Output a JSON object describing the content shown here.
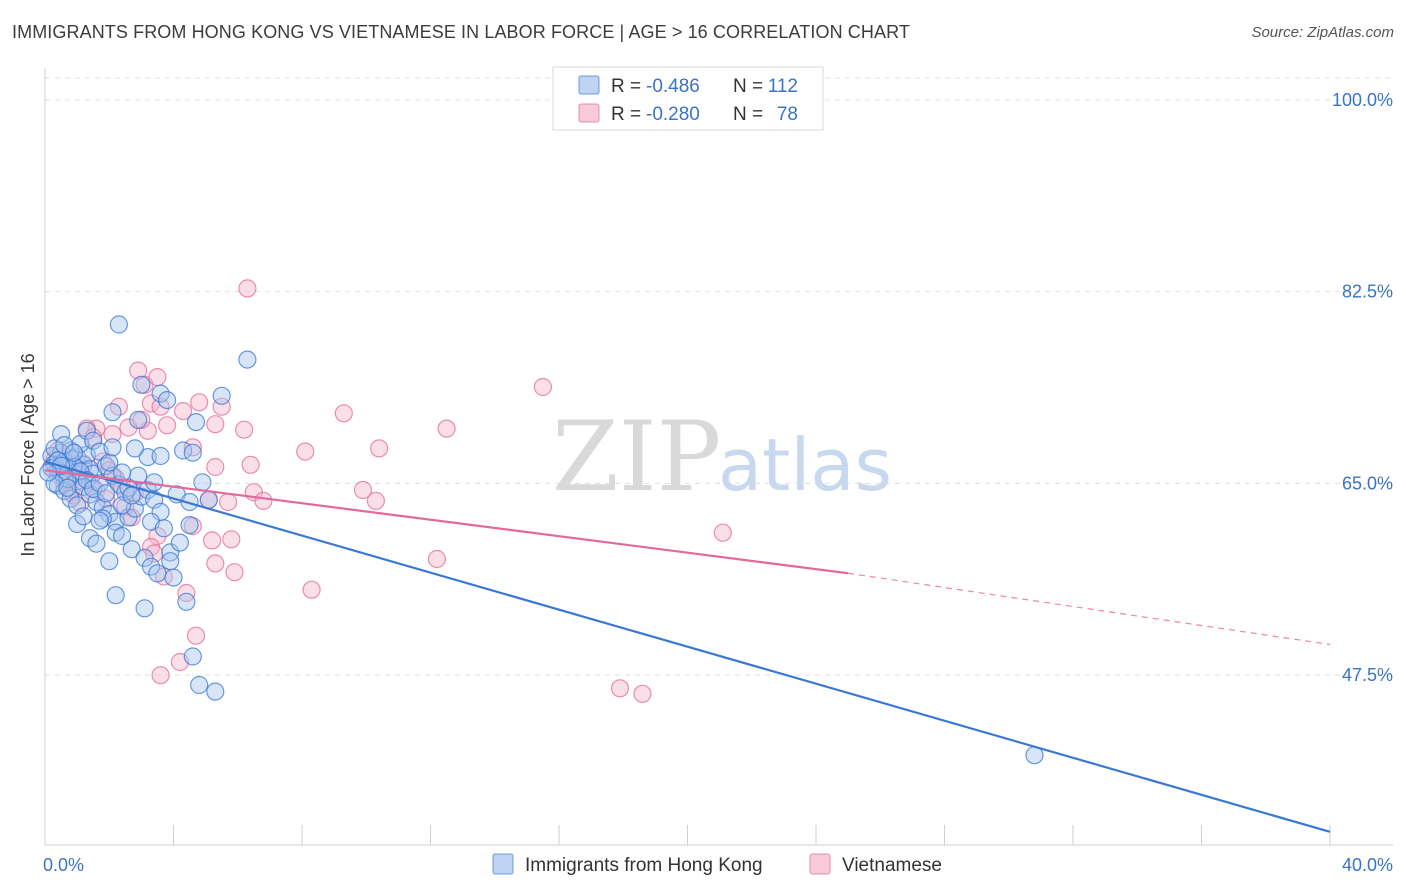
{
  "title": "IMMIGRANTS FROM HONG KONG VS VIETNAMESE IN LABOR FORCE | AGE > 16 CORRELATION CHART",
  "source": "Source: ZipAtlas.com",
  "watermark": {
    "zip": "ZIP",
    "atlas": "atlas"
  },
  "colors": {
    "blue": "#3a78d4",
    "blue_fill": "#a9c6ee",
    "pink": "#e3699a",
    "pink_fill": "#f4b9cd",
    "tick": "#3b73c8"
  },
  "legend": {
    "r_label": "R =",
    "n_label": "N =",
    "rows": [
      {
        "r": "-0.486",
        "n": "112"
      },
      {
        "r": "-0.280",
        "n": "78"
      }
    ]
  },
  "chart_data": {
    "type": "scatter",
    "xlabel": "",
    "ylabel": "In Labor Force | Age > 16",
    "xlim": [
      0,
      40
    ],
    "ylim": [
      32,
      102
    ],
    "x_tick_labels": [
      "0.0%",
      "40.0%"
    ],
    "y_ticks": [
      47.5,
      65.0,
      82.5,
      100.0
    ],
    "y_tick_labels": [
      "47.5%",
      "65.0%",
      "82.5%",
      "100.0%"
    ],
    "grid": true,
    "legend_position": "top-center",
    "series": [
      {
        "name": "Immigrants from Hong Kong",
        "color": "blue",
        "trend": {
          "x": [
            0,
            40
          ],
          "y": [
            67.0,
            33.2
          ],
          "dashed_from": null
        },
        "points": [
          [
            0.2,
            67.5
          ],
          [
            0.3,
            66.8
          ],
          [
            0.4,
            66.2
          ],
          [
            0.5,
            67.8
          ],
          [
            0.6,
            65.5
          ],
          [
            0.7,
            66.9
          ],
          [
            0.8,
            67.2
          ],
          [
            0.9,
            66.0
          ],
          [
            1.0,
            67.4
          ],
          [
            1.1,
            65.8
          ],
          [
            0.3,
            68.2
          ],
          [
            0.5,
            69.5
          ],
          [
            0.6,
            67.0
          ],
          [
            0.8,
            68.0
          ],
          [
            0.9,
            66.5
          ],
          [
            1.0,
            65.2
          ],
          [
            1.2,
            66.7
          ],
          [
            1.3,
            67.6
          ],
          [
            1.4,
            66.3
          ],
          [
            1.5,
            65.9
          ],
          [
            0.4,
            64.8
          ],
          [
            0.6,
            64.3
          ],
          [
            0.8,
            63.6
          ],
          [
            1.0,
            63.0
          ],
          [
            1.2,
            64.7
          ],
          [
            1.4,
            64.0
          ],
          [
            1.6,
            63.3
          ],
          [
            1.8,
            62.8
          ],
          [
            2.0,
            62.2
          ],
          [
            2.2,
            61.5
          ],
          [
            0.5,
            66.0
          ],
          [
            0.7,
            65.4
          ],
          [
            1.1,
            68.6
          ],
          [
            1.3,
            69.8
          ],
          [
            1.5,
            68.9
          ],
          [
            1.7,
            67.9
          ],
          [
            1.9,
            66.6
          ],
          [
            2.1,
            65.7
          ],
          [
            2.3,
            64.9
          ],
          [
            2.5,
            64.2
          ],
          [
            1.0,
            61.3
          ],
          [
            1.4,
            60.0
          ],
          [
            1.8,
            61.8
          ],
          [
            2.2,
            60.5
          ],
          [
            2.6,
            61.9
          ],
          [
            2.8,
            62.7
          ],
          [
            3.0,
            63.8
          ],
          [
            3.2,
            64.4
          ],
          [
            3.4,
            63.5
          ],
          [
            3.6,
            62.4
          ],
          [
            1.6,
            59.5
          ],
          [
            2.0,
            57.9
          ],
          [
            2.4,
            60.2
          ],
          [
            2.7,
            59.0
          ],
          [
            3.1,
            58.2
          ],
          [
            3.3,
            57.4
          ],
          [
            3.5,
            56.8
          ],
          [
            3.9,
            58.7
          ],
          [
            4.2,
            59.6
          ],
          [
            4.5,
            61.2
          ],
          [
            2.1,
            71.5
          ],
          [
            2.9,
            70.8
          ],
          [
            3.0,
            74.0
          ],
          [
            3.6,
            73.2
          ],
          [
            3.8,
            72.6
          ],
          [
            4.7,
            70.6
          ],
          [
            5.5,
            73.0
          ],
          [
            6.3,
            76.3
          ],
          [
            2.3,
            79.5
          ],
          [
            3.2,
            67.4
          ],
          [
            3.6,
            67.5
          ],
          [
            4.1,
            64.0
          ],
          [
            4.5,
            63.3
          ],
          [
            4.9,
            65.1
          ],
          [
            5.1,
            63.5
          ],
          [
            4.3,
            68.0
          ],
          [
            4.6,
            67.8
          ],
          [
            3.4,
            65.1
          ],
          [
            2.9,
            65.7
          ],
          [
            2.6,
            64.6
          ],
          [
            2.2,
            54.8
          ],
          [
            3.1,
            53.6
          ],
          [
            4.4,
            54.2
          ],
          [
            4.6,
            49.2
          ],
          [
            4.8,
            46.6
          ],
          [
            5.3,
            46.0
          ],
          [
            1.2,
            62.0
          ],
          [
            1.7,
            61.6
          ],
          [
            2.4,
            63.0
          ],
          [
            2.7,
            63.9
          ],
          [
            0.2,
            66.4
          ],
          [
            0.3,
            65.0
          ],
          [
            0.4,
            67.1
          ],
          [
            0.5,
            66.6
          ],
          [
            0.6,
            68.5
          ],
          [
            0.7,
            64.6
          ],
          [
            0.9,
            67.8
          ],
          [
            1.1,
            66.1
          ],
          [
            1.3,
            65.3
          ],
          [
            1.5,
            64.5
          ],
          [
            1.7,
            65.0
          ],
          [
            1.9,
            64.1
          ],
          [
            2.0,
            66.9
          ],
          [
            2.1,
            68.3
          ],
          [
            2.4,
            66.0
          ],
          [
            2.8,
            68.2
          ],
          [
            3.3,
            61.5
          ],
          [
            3.7,
            60.9
          ],
          [
            3.9,
            57.9
          ],
          [
            4.0,
            56.4
          ],
          [
            30.8,
            40.2
          ],
          [
            0.1,
            66.0
          ]
        ]
      },
      {
        "name": "Vietnamese",
        "color": "pink",
        "trend": {
          "x": [
            0,
            25,
            40
          ],
          "y": [
            66.2,
            56.8,
            50.3
          ],
          "dashed_from": 25
        },
        "points": [
          [
            0.2,
            66.5
          ],
          [
            0.3,
            67.2
          ],
          [
            0.4,
            65.8
          ],
          [
            0.5,
            66.9
          ],
          [
            0.6,
            67.5
          ],
          [
            0.7,
            65.3
          ],
          [
            0.8,
            66.1
          ],
          [
            0.9,
            67.8
          ],
          [
            1.0,
            66.4
          ],
          [
            1.1,
            65.6
          ],
          [
            0.4,
            68.0
          ],
          [
            0.6,
            64.9
          ],
          [
            0.8,
            64.2
          ],
          [
            1.2,
            66.8
          ],
          [
            1.4,
            65.0
          ],
          [
            1.6,
            64.4
          ],
          [
            1.8,
            67.0
          ],
          [
            2.0,
            66.2
          ],
          [
            2.2,
            65.5
          ],
          [
            2.4,
            64.7
          ],
          [
            1.6,
            70.0
          ],
          [
            2.1,
            69.5
          ],
          [
            2.6,
            70.1
          ],
          [
            3.2,
            69.8
          ],
          [
            3.8,
            70.3
          ],
          [
            4.3,
            71.6
          ],
          [
            4.8,
            72.4
          ],
          [
            5.3,
            70.4
          ],
          [
            5.5,
            72.0
          ],
          [
            6.2,
            69.9
          ],
          [
            2.3,
            72.0
          ],
          [
            3.0,
            70.8
          ],
          [
            3.3,
            72.3
          ],
          [
            3.6,
            72.0
          ],
          [
            2.9,
            75.3
          ],
          [
            3.1,
            74.0
          ],
          [
            3.5,
            74.7
          ],
          [
            6.3,
            82.8
          ],
          [
            4.6,
            68.3
          ],
          [
            5.3,
            66.5
          ],
          [
            5.1,
            63.5
          ],
          [
            5.7,
            63.3
          ],
          [
            6.5,
            64.2
          ],
          [
            6.8,
            63.4
          ],
          [
            4.6,
            61.1
          ],
          [
            5.2,
            59.8
          ],
          [
            5.3,
            57.7
          ],
          [
            5.8,
            59.9
          ],
          [
            5.9,
            56.9
          ],
          [
            4.4,
            55.0
          ],
          [
            4.7,
            51.1
          ],
          [
            4.2,
            48.7
          ],
          [
            3.6,
            47.5
          ],
          [
            3.5,
            60.2
          ],
          [
            3.3,
            59.2
          ],
          [
            3.4,
            58.6
          ],
          [
            3.7,
            56.5
          ],
          [
            2.7,
            61.9
          ],
          [
            2.5,
            62.9
          ],
          [
            2.8,
            64.1
          ],
          [
            6.4,
            66.7
          ],
          [
            8.1,
            67.9
          ],
          [
            9.3,
            71.4
          ],
          [
            9.9,
            64.4
          ],
          [
            10.3,
            63.4
          ],
          [
            10.4,
            68.2
          ],
          [
            12.5,
            70.0
          ],
          [
            12.2,
            58.1
          ],
          [
            15.5,
            73.8
          ],
          [
            21.1,
            60.5
          ],
          [
            8.3,
            55.3
          ],
          [
            17.9,
            46.3
          ],
          [
            18.6,
            45.8
          ],
          [
            1.3,
            70.0
          ],
          [
            1.5,
            69.2
          ],
          [
            0.9,
            63.9
          ],
          [
            1.1,
            63.2
          ],
          [
            1.9,
            63.6
          ]
        ]
      }
    ]
  },
  "bottom_legend": [
    {
      "label": "Immigrants from Hong Kong",
      "color": "blue"
    },
    {
      "label": "Vietnamese",
      "color": "pink"
    }
  ]
}
